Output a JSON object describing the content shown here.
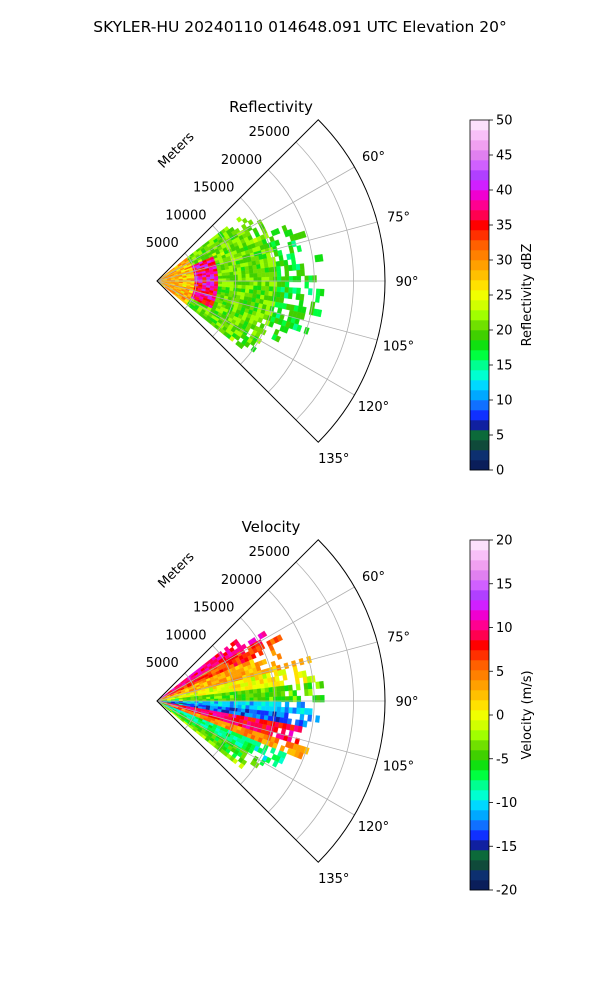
{
  "figure_title": "SKYLER-HU  20240110  014648.091 UTC Elevation 20°",
  "chart_data": [
    {
      "type": "heatmap",
      "projection": "polar-sector",
      "title": "Reflectivity",
      "radial_axis_label": "Meters",
      "radial_ticks": [
        "5000",
        "10000",
        "15000",
        "20000",
        "25000"
      ],
      "radial_tick_values": [
        5000,
        10000,
        15000,
        20000,
        25000
      ],
      "rlim": [
        0,
        29000
      ],
      "azimuth_range_deg": [
        45,
        135
      ],
      "azimuth_ticks": [
        "60°",
        "75°",
        "90°",
        "105°",
        "120°",
        "135°"
      ],
      "azimuth_tick_values": [
        60,
        75,
        90,
        105,
        120,
        135
      ],
      "grid": true,
      "colorbar": {
        "label": "Reflectivity dBZ",
        "range": [
          0,
          50
        ],
        "ticks": [
          "0",
          "5",
          "10",
          "15",
          "20",
          "25",
          "30",
          "35",
          "40",
          "45",
          "50"
        ],
        "tick_values": [
          0,
          5,
          10,
          15,
          20,
          25,
          30,
          35,
          40,
          45,
          50
        ],
        "colors": [
          "#0a1e5a",
          "#0d3070",
          "#0f4a3a",
          "#0c6a3a",
          "#1020a0",
          "#1030ff",
          "#1070ff",
          "#00a8ff",
          "#00d8ff",
          "#00ffd0",
          "#00ff90",
          "#00ff40",
          "#10e010",
          "#40d000",
          "#70e000",
          "#a0ff00",
          "#d0ff00",
          "#f0ff00",
          "#ffe000",
          "#ffc000",
          "#ffa000",
          "#ff8000",
          "#ff6000",
          "#ff3000",
          "#ff0000",
          "#ff0050",
          "#ff0090",
          "#f000d0",
          "#d020ff",
          "#b040ff",
          "#d060ff",
          "#e080f0",
          "#f0a0f0",
          "#f8c0f8",
          "#fce0fc"
        ],
        "values_per_step": 1.4286
      },
      "echo": {
        "azimuth_extent_deg": [
          52,
          128
        ],
        "max_range_m": 21000,
        "dominant_dbz": [
          18,
          22
        ],
        "enhanced_ring_range_m": [
          4500,
          7500
        ],
        "enhanced_ring_dbz": [
          33,
          42
        ],
        "near_field_dbz": [
          26,
          32
        ]
      }
    },
    {
      "type": "heatmap",
      "projection": "polar-sector",
      "title": "Velocity",
      "radial_axis_label": "Meters",
      "radial_ticks": [
        "5000",
        "10000",
        "15000",
        "20000",
        "25000"
      ],
      "radial_tick_values": [
        5000,
        10000,
        15000,
        20000,
        25000
      ],
      "rlim": [
        0,
        29000
      ],
      "azimuth_range_deg": [
        45,
        135
      ],
      "azimuth_ticks": [
        "60°",
        "75°",
        "90°",
        "105°",
        "120°",
        "135°"
      ],
      "azimuth_tick_values": [
        60,
        75,
        90,
        105,
        120,
        135
      ],
      "grid": true,
      "colorbar": {
        "label": "Velocity (m/s)",
        "range": [
          -20,
          20
        ],
        "ticks": [
          "-20",
          "-15",
          "-10",
          "-5",
          "0",
          "5",
          "10",
          "15",
          "20"
        ],
        "tick_values": [
          -20,
          -15,
          -10,
          -5,
          0,
          5,
          10,
          15,
          20
        ],
        "colors": [
          "#0a1e5a",
          "#0d3070",
          "#0f4a3a",
          "#0c6a3a",
          "#1020a0",
          "#1030ff",
          "#1070ff",
          "#00a8ff",
          "#00d8ff",
          "#00ffd0",
          "#00ff90",
          "#00ff40",
          "#10e010",
          "#40d000",
          "#70e000",
          "#a0ff00",
          "#d0ff00",
          "#f0ff00",
          "#ffe000",
          "#ffc000",
          "#ffa000",
          "#ff8000",
          "#ff6000",
          "#ff3000",
          "#ff0000",
          "#ff0050",
          "#ff0090",
          "#f000d0",
          "#d020ff",
          "#b040ff",
          "#d060ff",
          "#e080f0",
          "#f0a0f0",
          "#f8c0f8",
          "#fce0fc"
        ]
      },
      "echo": {
        "azimuth_extent_deg": [
          52,
          128
        ],
        "max_range_m": 21000,
        "velocity_by_azimuth": [
          {
            "az": 55,
            "v": 10
          },
          {
            "az": 62,
            "v": 7
          },
          {
            "az": 70,
            "v": 3
          },
          {
            "az": 78,
            "v": 0
          },
          {
            "az": 85,
            "v": -4
          },
          {
            "az": 92,
            "v": -11
          },
          {
            "az": 97,
            "v": -13
          },
          {
            "az": 102,
            "v": 9
          },
          {
            "az": 108,
            "v": 4
          },
          {
            "az": 115,
            "v": -8
          },
          {
            "az": 122,
            "v": -5
          },
          {
            "az": 127,
            "v": -3
          }
        ]
      }
    }
  ]
}
